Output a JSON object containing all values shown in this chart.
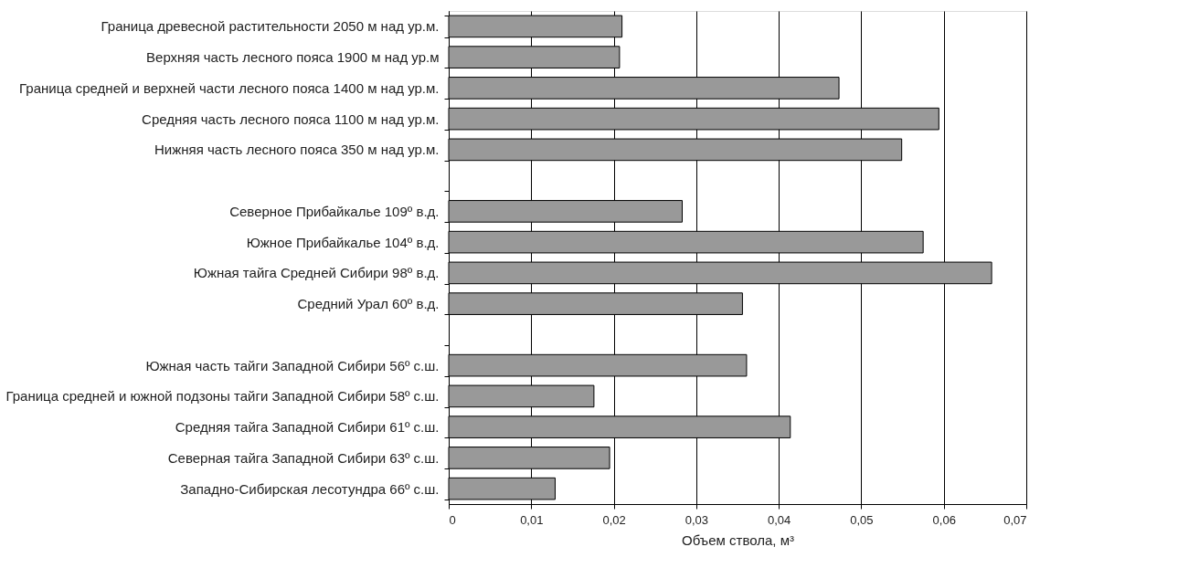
{
  "chart_data": {
    "type": "bar",
    "orientation": "horizontal",
    "xlabel": "Объем ствола, м³",
    "categories": [
      "Граница древесной растительности 2050 м над ур.м.",
      "Верхняя часть лесного пояса 1900 м над ур.м",
      "Граница средней и верхней части лесного пояса 1400 м над ур.м.",
      "Средняя часть лесного пояса 1100 м над ур.м.",
      "Нижняя часть лесного пояса 350 м над ур.м.",
      null,
      "Северное Прибайкалье 109º в.д.",
      "Южное Прибайкалье 104º в.д.",
      "Южная тайга Средней Сибири 98º в.д.",
      "Средний Урал 60º в.д.",
      null,
      "Южная часть тайги Западной Сибири 56º с.ш.",
      "Граница средней и южной подзоны тайги Западной Сибири 58º с.ш.",
      "Средняя тайга Западной Сибири 61º с.ш.",
      "Северная тайга Западной Сибири 63º с.ш.",
      "Западно-Сибирская лесотундра 66º с.ш."
    ],
    "series": [
      {
        "color": "#999999",
        "values": [
          0.021,
          0.0207,
          0.0473,
          0.0594,
          0.0549,
          null,
          0.0283,
          0.0575,
          0.0658,
          0.0356,
          null,
          0.0361,
          0.0176,
          0.0414,
          0.0195,
          0.0129
        ]
      }
    ],
    "xlim": [
      0,
      0.07
    ],
    "xticks": [
      0,
      {
        "value": 0.01,
        "label": "0,01"
      },
      {
        "value": 0.02,
        "label": "0,02"
      },
      {
        "value": 0.03,
        "label": "0,03"
      },
      {
        "value": 0.04,
        "label": "0,04"
      },
      {
        "value": 0.05,
        "label": "0,05"
      },
      {
        "value": 0.06,
        "label": "0,06"
      },
      {
        "value": 0.07,
        "label": "0,07"
      }
    ],
    "grid": "x"
  }
}
